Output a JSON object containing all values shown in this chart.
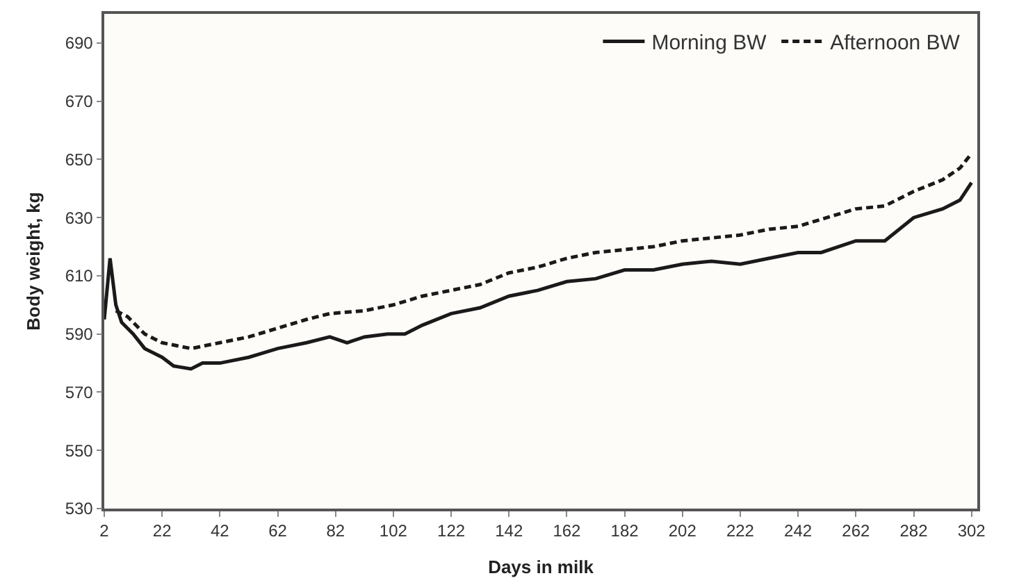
{
  "chart_data": {
    "type": "line",
    "xlabel": "Days in milk",
    "ylabel": "Body weight, kg",
    "xlim": [
      2,
      304
    ],
    "xticks": [
      2,
      22,
      42,
      62,
      82,
      102,
      122,
      142,
      162,
      182,
      202,
      222,
      242,
      262,
      282,
      302
    ],
    "ylim": [
      530,
      700
    ],
    "yticks": [
      530,
      550,
      570,
      590,
      610,
      630,
      650,
      670,
      690
    ],
    "grid": false,
    "legend": "top right",
    "series": [
      {
        "name": "Morning BW",
        "color": "#1a1a1a",
        "line_style": "solid",
        "x": [
          2,
          4,
          6,
          8,
          12,
          16,
          22,
          26,
          32,
          36,
          42,
          52,
          62,
          72,
          80,
          86,
          92,
          100,
          106,
          112,
          122,
          132,
          142,
          152,
          162,
          172,
          182,
          192,
          202,
          212,
          222,
          232,
          242,
          250,
          262,
          272,
          282,
          292,
          298,
          302
        ],
        "values": [
          595,
          616,
          600,
          594,
          590,
          585,
          582,
          579,
          578,
          580,
          580,
          582,
          585,
          587,
          589,
          587,
          589,
          590,
          590,
          593,
          597,
          599,
          603,
          605,
          608,
          609,
          612,
          612,
          614,
          615,
          614,
          616,
          618,
          618,
          622,
          622,
          630,
          633,
          636,
          642
        ]
      },
      {
        "name": "Afternoon BW",
        "color": "#1a1a1a",
        "line_style": "dashed",
        "x": [
          6,
          10,
          16,
          22,
          32,
          42,
          52,
          62,
          72,
          80,
          92,
          102,
          112,
          122,
          132,
          142,
          152,
          162,
          172,
          182,
          192,
          202,
          212,
          222,
          232,
          242,
          252,
          262,
          272,
          282,
          292,
          298,
          302
        ],
        "values": [
          598,
          596,
          590,
          587,
          585,
          587,
          589,
          592,
          595,
          597,
          598,
          600,
          603,
          605,
          607,
          611,
          613,
          616,
          618,
          619,
          620,
          622,
          623,
          624,
          626,
          627,
          630,
          633,
          634,
          639,
          643,
          647,
          652
        ]
      }
    ]
  }
}
